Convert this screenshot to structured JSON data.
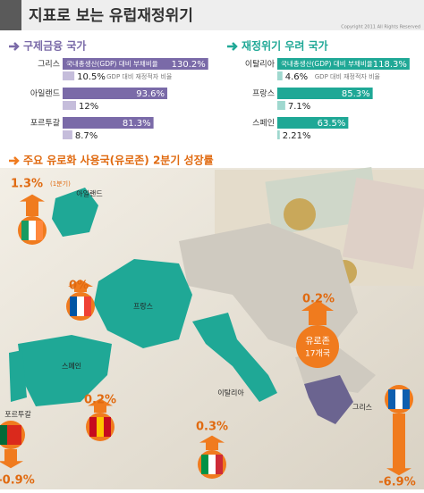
{
  "header": {
    "title": "지표로 보는 유럽재정위기",
    "credit": "Copyright 2011 All Rights Reserved"
  },
  "debt_charts": [
    {
      "title": "구제금융 국가",
      "color": "#7a6aa8",
      "light": "#c5bddb",
      "legend": [
        "국내총생산(GDP) 대비 부채비율",
        "GDP 대비 재정적자 비율"
      ],
      "countries": [
        {
          "name": "그리스",
          "debt": 130.2,
          "debt_label": "130.2%",
          "deficit": 10.5,
          "deficit_label": "10.5%"
        },
        {
          "name": "아일랜드",
          "debt": 93.6,
          "debt_label": "93.6%",
          "deficit": 12,
          "deficit_label": "12%"
        },
        {
          "name": "포르투갈",
          "debt": 81.3,
          "debt_label": "81.3%",
          "deficit": 8.7,
          "deficit_label": "8.7%"
        }
      ]
    },
    {
      "title": "재정위기 우려 국가",
      "color": "#1fa896",
      "light": "#9fd8cf",
      "legend": [
        "국내총생산(GDP) 대비 부채비율",
        "GDP 대비 재정적자 비율"
      ],
      "countries": [
        {
          "name": "이탈리아",
          "debt": 118.3,
          "debt_label": "118.3%",
          "deficit": 4.6,
          "deficit_label": "4.6%"
        },
        {
          "name": "프랑스",
          "debt": 85.3,
          "debt_label": "85.3%",
          "deficit": 7.1,
          "deficit_label": "7.1%"
        },
        {
          "name": "스페인",
          "debt": 63.5,
          "debt_label": "63.5%",
          "deficit": 2.21,
          "deficit_label": "2.21%"
        }
      ]
    }
  ],
  "growth": {
    "title": "주요 유로화 사용국(유로존) 2분기 성장률",
    "items": [
      {
        "name": "아일랜드",
        "value": 1.3,
        "label": "1.3%",
        "note": "(1분기)"
      },
      {
        "name": "프랑스",
        "value": 0,
        "label": "0%"
      },
      {
        "name": "스페인",
        "value": 0.2,
        "label": "0.2%"
      },
      {
        "name": "포르투갈",
        "value": -0.9,
        "label": "-0.9%"
      },
      {
        "name": "이탈리아",
        "value": 0.3,
        "label": "0.3%"
      },
      {
        "name": "그리스",
        "value": -6.9,
        "label": "-6.9%"
      },
      {
        "name": "유로존",
        "sub": "17개국",
        "value": 0.2,
        "label": "0.2%"
      }
    ]
  }
}
